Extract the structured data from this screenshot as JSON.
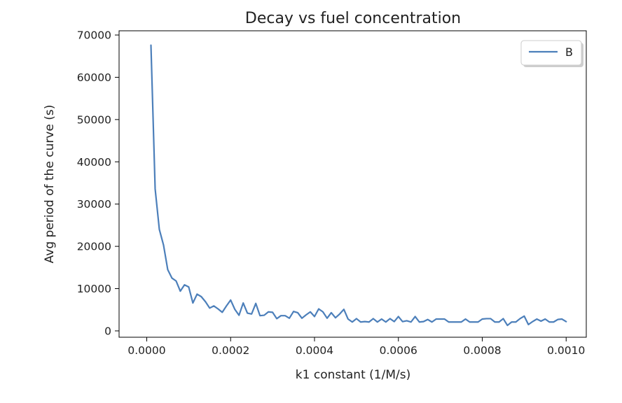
{
  "chart_data": {
    "type": "line",
    "title": "Decay vs fuel concentration",
    "xlabel": "k1 constant (1/M/s)",
    "ylabel": "Avg period of the curve (s)",
    "xlim": [
      -6.6e-05,
      0.001048
    ],
    "ylim": [
      -1500,
      71000
    ],
    "xticks": [
      0.0,
      0.0002,
      0.0004,
      0.0006,
      0.0008,
      0.001
    ],
    "xtick_labels": [
      "0.0000",
      "0.0002",
      "0.0004",
      "0.0006",
      "0.0008",
      "0.0010"
    ],
    "yticks": [
      0,
      10000,
      20000,
      30000,
      40000,
      50000,
      60000,
      70000
    ],
    "ytick_labels": [
      "0",
      "10000",
      "20000",
      "30000",
      "40000",
      "50000",
      "60000",
      "70000"
    ],
    "grid": false,
    "legend_position": "top-right",
    "series": [
      {
        "name": "B",
        "color": "#4c7fba",
        "x": [
          1e-05,
          2e-05,
          3e-05,
          4e-05,
          5e-05,
          6e-05,
          7e-05,
          8e-05,
          9e-05,
          0.0001,
          0.00011,
          0.00012,
          0.00013,
          0.00014,
          0.00015,
          0.00016,
          0.00017,
          0.00018,
          0.00019,
          0.0002,
          0.00021,
          0.00022,
          0.00023,
          0.00024,
          0.00025,
          0.00026,
          0.00027,
          0.00028,
          0.00029,
          0.0003,
          0.00031,
          0.00032,
          0.00033,
          0.00034,
          0.00035,
          0.00036,
          0.00037,
          0.00038,
          0.00039,
          0.0004,
          0.00041,
          0.00042,
          0.00043,
          0.00044,
          0.00045,
          0.00046,
          0.00047,
          0.00048,
          0.00049,
          0.0005,
          0.00051,
          0.00052,
          0.00053,
          0.00054,
          0.00055,
          0.00056,
          0.00057,
          0.00058,
          0.00059,
          0.0006,
          0.00061,
          0.00062,
          0.00063,
          0.00064,
          0.00065,
          0.00066,
          0.00067,
          0.00068,
          0.00069,
          0.0007,
          0.00071,
          0.00072,
          0.00073,
          0.00074,
          0.00075,
          0.00076,
          0.00077,
          0.00078,
          0.00079,
          0.0008,
          0.00081,
          0.00082,
          0.00083,
          0.00084,
          0.00085,
          0.00086,
          0.00087,
          0.00088,
          0.00089,
          0.0009,
          0.00091,
          0.00092,
          0.00093,
          0.00094,
          0.00095,
          0.00096,
          0.00097,
          0.00098,
          0.00099,
          0.001
        ],
        "y": [
          67600,
          33600,
          24000,
          20300,
          14500,
          12500,
          11800,
          9400,
          10900,
          10400,
          6600,
          8700,
          8100,
          6900,
          5400,
          5900,
          5200,
          4400,
          5900,
          7300,
          5100,
          3700,
          6600,
          4200,
          4000,
          6500,
          3600,
          3700,
          4500,
          4400,
          2900,
          3600,
          3600,
          3000,
          4600,
          4300,
          3000,
          3800,
          4500,
          3400,
          5200,
          4500,
          3000,
          4300,
          3100,
          4000,
          5100,
          2800,
          2100,
          2900,
          2100,
          2200,
          2100,
          2900,
          2100,
          2800,
          2100,
          2900,
          2200,
          3400,
          2200,
          2400,
          2100,
          3400,
          2100,
          2200,
          2700,
          2100,
          2800,
          2800,
          2800,
          2100,
          2100,
          2100,
          2100,
          2800,
          2100,
          2100,
          2100,
          2800,
          2900,
          2900,
          2100,
          2100,
          2900,
          1300,
          2100,
          2100,
          2900,
          3500,
          1500,
          2200,
          2800,
          2300,
          2800,
          2100,
          2100,
          2700,
          2800,
          2200
        ]
      }
    ]
  }
}
